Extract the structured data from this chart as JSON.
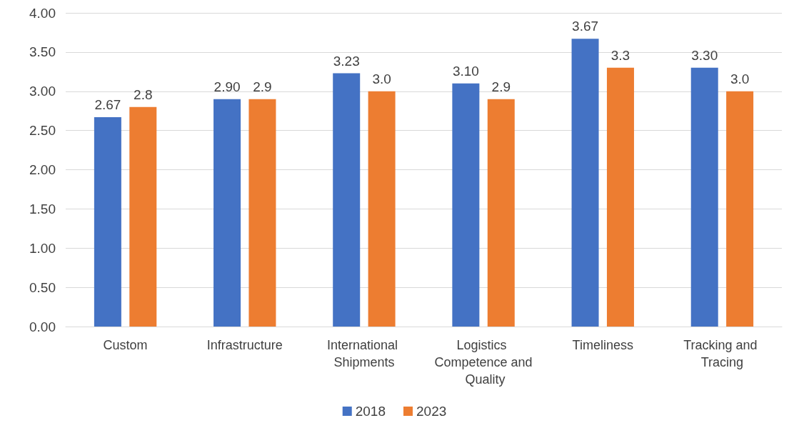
{
  "chart_data": {
    "type": "bar",
    "categories": [
      "Custom",
      "Infrastructure",
      "International Shipments",
      "Logistics Competence and Quality",
      "Timeliness",
      "Tracking and Tracing"
    ],
    "series": [
      {
        "name": "2018",
        "color": "#4472c4",
        "values": [
          2.67,
          2.9,
          3.23,
          3.1,
          3.67,
          3.3
        ],
        "value_labels": [
          "2.67",
          "2.90",
          "3.23",
          "3.10",
          "3.67",
          "3.30"
        ]
      },
      {
        "name": "2023",
        "color": "#ed7d31",
        "values": [
          2.8,
          2.9,
          3.0,
          2.9,
          3.3,
          3.0
        ],
        "value_labels": [
          "2.8",
          "2.9",
          "3.0",
          "2.9",
          "3.3",
          "3.0"
        ]
      }
    ],
    "ylim": [
      0,
      4
    ],
    "yticks": [
      {
        "value": 0,
        "label": "0.00"
      },
      {
        "value": 0.5,
        "label": "0.50"
      },
      {
        "value": 1,
        "label": "1.00"
      },
      {
        "value": 1.5,
        "label": "1.50"
      },
      {
        "value": 2,
        "label": "2.00"
      },
      {
        "value": 2.5,
        "label": "2.50"
      },
      {
        "value": 3,
        "label": "3.00"
      },
      {
        "value": 3.5,
        "label": "3.50"
      },
      {
        "value": 4,
        "label": "4.00"
      }
    ],
    "grid": "y",
    "legend": "bottom"
  }
}
